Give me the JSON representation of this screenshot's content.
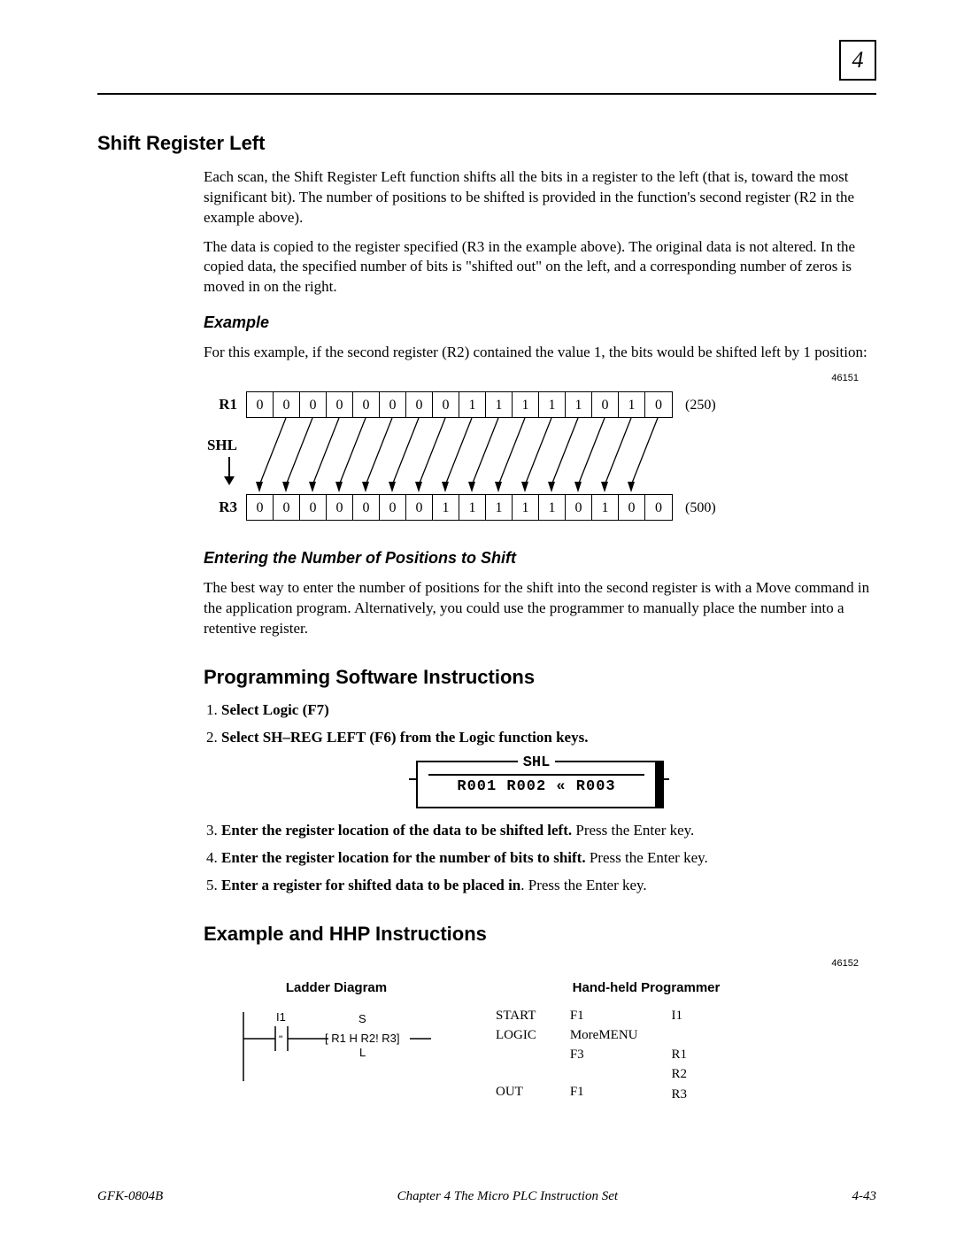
{
  "page_number_box": "4",
  "title": "Shift Register Left",
  "para1": "Each scan, the Shift Register Left function shifts all the bits in a register to the left (that is, toward the most significant bit). The number of positions to be shifted is provided in the function's second register (R2 in the example above).",
  "para2": "The data is copied to the register specified (R3 in the example above). The original data is not altered. In the copied data, the specified number of bits is \"shifted out\" on the left, and a corresponding number of zeros is moved in on the right.",
  "example_heading": "Example",
  "example_text": "For this example, if the second register (R2) contained the value 1, the bits would be shifted left by 1 position:",
  "fig1_id": "46151",
  "r1_label": "R1",
  "shl_label": "SHL",
  "r3_label": "R3",
  "r1_bits": [
    "0",
    "0",
    "0",
    "0",
    "0",
    "0",
    "0",
    "0",
    "1",
    "1",
    "1",
    "1",
    "1",
    "0",
    "1",
    "0"
  ],
  "r1_value": "(250)",
  "r3_bits": [
    "0",
    "0",
    "0",
    "0",
    "0",
    "0",
    "0",
    "1",
    "1",
    "1",
    "1",
    "1",
    "0",
    "1",
    "0",
    "0"
  ],
  "r3_value": "(500)",
  "entering_heading": "Entering the Number of Positions to Shift",
  "entering_text": "The best way to enter the number of positions for the shift into the second register is with a Move command in the application program. Alternatively, you could use the programmer to manually place the number into a retentive register.",
  "prog_heading": "Programming Software Instructions",
  "steps": [
    {
      "bold": "Select Logic (F7)",
      "rest": ""
    },
    {
      "bold": "Select SH–REG LEFT (F6) from the Logic function keys.",
      "rest": ""
    },
    {
      "bold": "Enter the register location of the data to be shifted left.",
      "rest": " Press the Enter key."
    },
    {
      "bold": "Enter the register location for the number of bits to shift.",
      "rest": " Press the Enter key."
    },
    {
      "bold": "Enter a register for shifted data to be placed in",
      "rest": ".  Press the Enter key."
    }
  ],
  "shl_box_title": "SHL",
  "shl_box_content": "R001   R002  « R003",
  "hhp_heading": "Example and HHP Instructions",
  "fig2_id": "46152",
  "ladder_header": "Ladder Diagram",
  "hhp_header": "Hand-held Programmer",
  "ladder": {
    "i1": "I1",
    "s": "S",
    "mid": "[ R1 H R2!  R3]",
    "l": "L"
  },
  "hhp": {
    "c1": [
      "START",
      "LOGIC",
      "",
      "OUT"
    ],
    "c2": [
      "F1",
      "MoreMENU",
      "F3",
      "F1"
    ],
    "c3": [
      "I1",
      "",
      "R1",
      "R2",
      "R3"
    ]
  },
  "footer_left": "GFK-0804B",
  "footer_center": "Chapter 4  The Micro PLC Instruction Set",
  "footer_right": "4-43"
}
